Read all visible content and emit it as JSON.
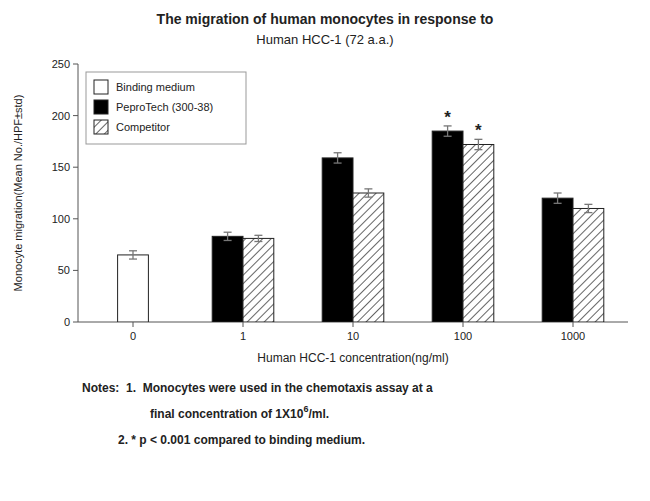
{
  "chart_data": {
    "type": "bar",
    "title": "The migration of human monocytes in response to",
    "subtitle": "Human HCC-1 (72 a.a.)",
    "x_label": "Human HCC-1 concentration(ng/ml)",
    "y_label": "Monocyte migration(Mean No./HPF±std)",
    "categories": [
      "0",
      "1",
      "10",
      "100",
      "1000"
    ],
    "series": [
      {
        "name": "Binding medium",
        "color": "white",
        "values": [
          65,
          null,
          null,
          null,
          null
        ],
        "errors": [
          4,
          null,
          null,
          null,
          null
        ]
      },
      {
        "name": "PeproTech (300-38)",
        "color": "black",
        "values": [
          null,
          83,
          159,
          185,
          120
        ],
        "errors": [
          null,
          4,
          5,
          5,
          5
        ]
      },
      {
        "name": "Competitor",
        "color": "white",
        "values": [
          null,
          81,
          125,
          172,
          110
        ],
        "errors": [
          null,
          3,
          4,
          5,
          4
        ]
      }
    ],
    "annotations": [
      {
        "text": "*",
        "series": "PeproTech (300-38)",
        "category": "100"
      },
      {
        "text": "*",
        "series": "Competitor",
        "category": "100"
      }
    ],
    "notes": [
      "Notes:  1.  Monocytes were used in the chemotaxis assay at a",
      {
        "text": "final concentration of 1X10",
        "superscript": "6",
        "text_end": "/ml."
      },
      "2. * p < 0.001 compared to binding medium."
    ],
    "ylim": [
      0,
      250
    ],
    "yticks": [
      0,
      50,
      100,
      150,
      200,
      250
    ],
    "grid": false,
    "legend": "upper left"
  }
}
